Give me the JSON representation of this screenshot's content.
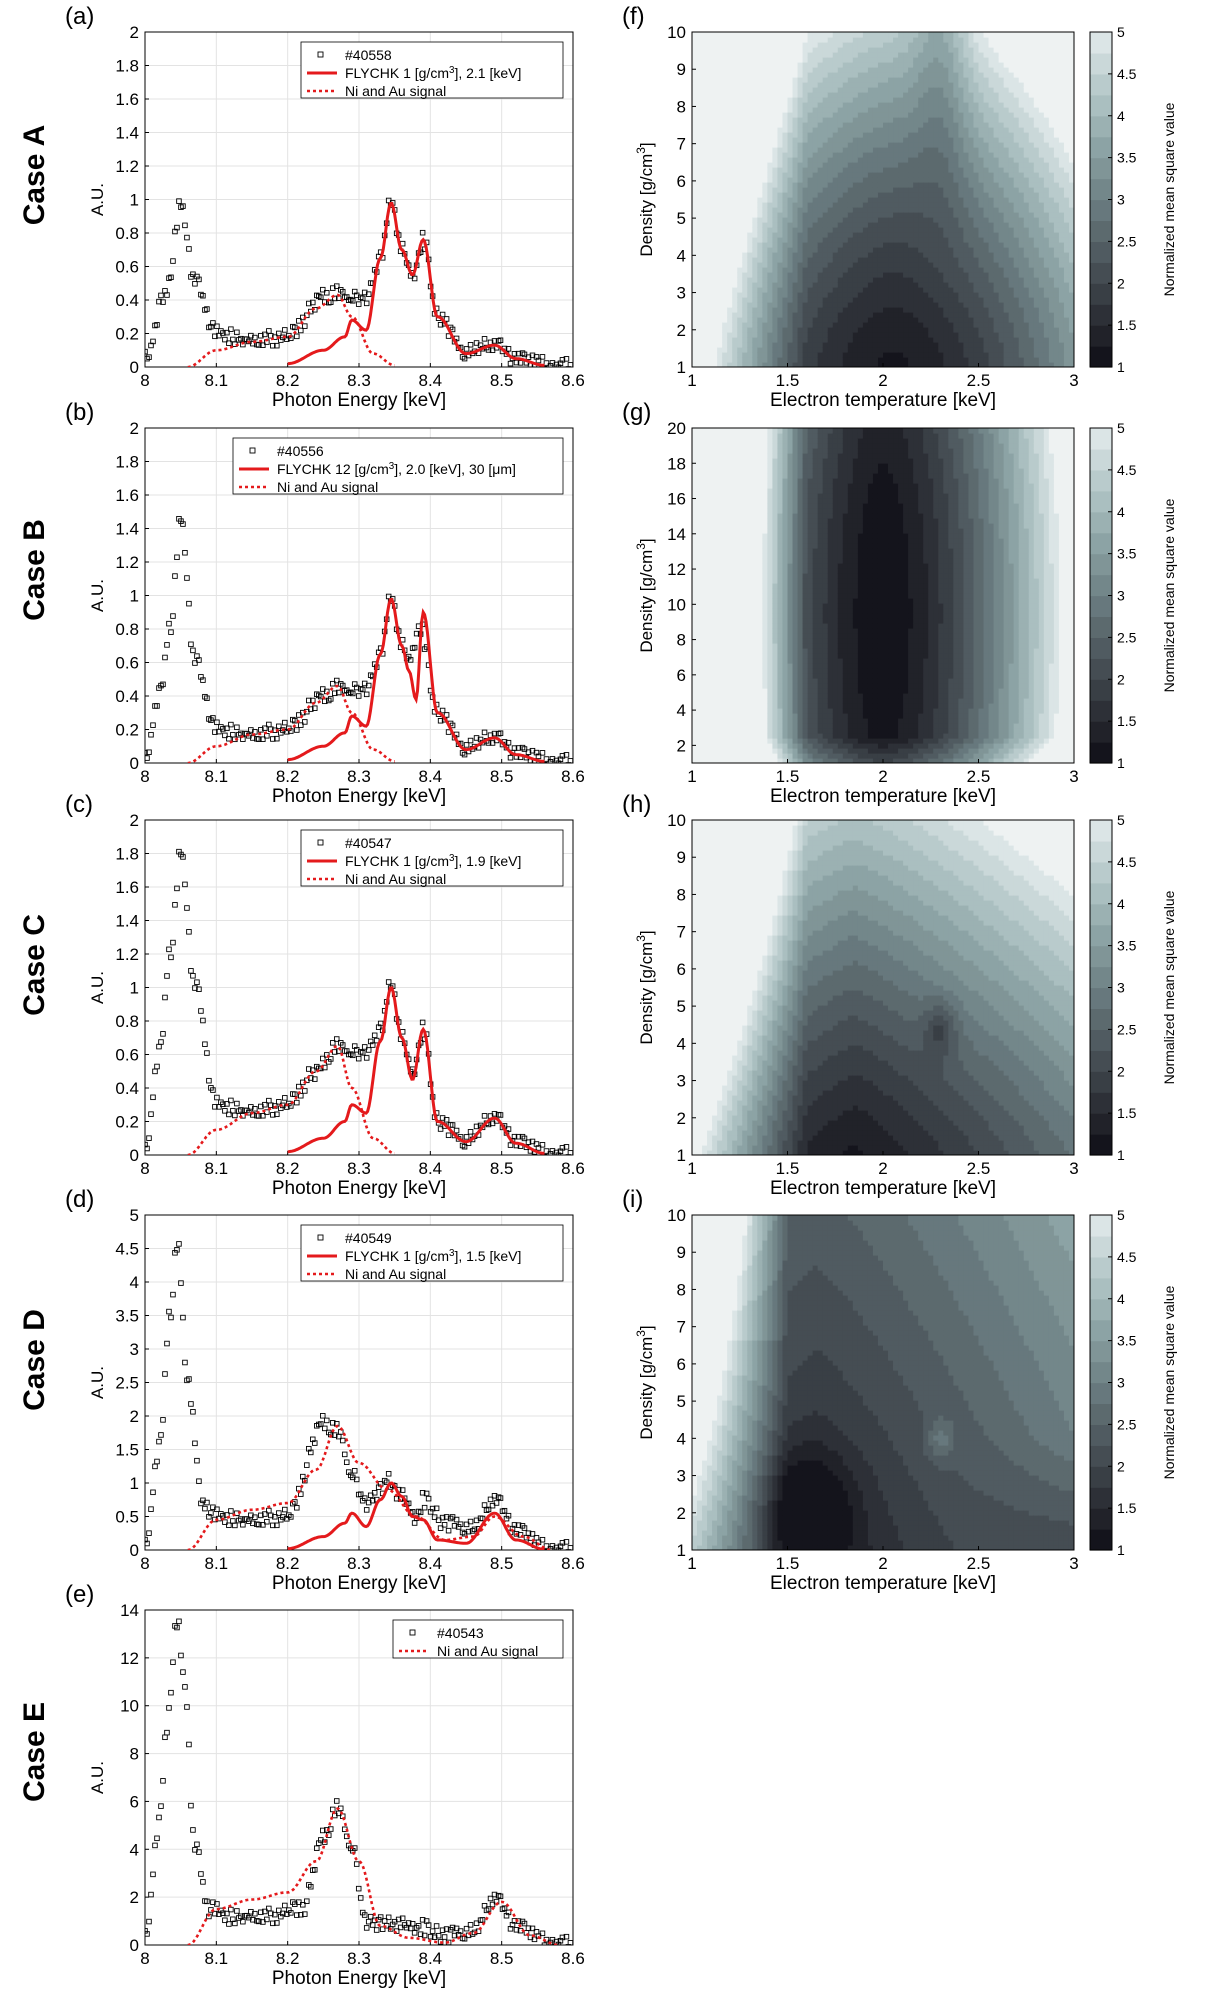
{
  "case_labels": [
    "Case A",
    "Case B",
    "Case C",
    "Case D",
    "Case E"
  ],
  "spectra_panels": [
    {
      "letter": "(a)",
      "case": "Case A",
      "shot": "#40558",
      "fit_label_parts": [
        "FLYCHK 1 [g/cm",
        "3",
        "], 2.1 [keV]"
      ],
      "ni_au_label": "Ni and Au signal",
      "ylim": [
        0,
        2
      ],
      "yticks": [
        0,
        0.2,
        0.4,
        0.6,
        0.8,
        1,
        1.2,
        1.4,
        1.6,
        1.8,
        2
      ],
      "ytick_labels": [
        "0",
        "0.2",
        "0.4",
        "0.6",
        "0.8",
        "1",
        "1.2",
        "1.4",
        "1.6",
        "1.8",
        "2"
      ]
    },
    {
      "letter": "(b)",
      "case": "Case B",
      "shot": "#40556",
      "fit_label_parts": [
        "FLYCHK 12 [g/cm",
        "3",
        "], 2.0 [keV], 30 [μm]"
      ],
      "ni_au_label": "Ni and Au signal",
      "ylim": [
        0,
        2
      ],
      "yticks": [
        0,
        0.2,
        0.4,
        0.6,
        0.8,
        1,
        1.2,
        1.4,
        1.6,
        1.8,
        2
      ],
      "ytick_labels": [
        "0",
        "0.2",
        "0.4",
        "0.6",
        "0.8",
        "1",
        "1.2",
        "1.4",
        "1.6",
        "1.8",
        "2"
      ]
    },
    {
      "letter": "(c)",
      "case": "Case C",
      "shot": "#40547",
      "fit_label_parts": [
        "FLYCHK 1 [g/cm",
        "3",
        "], 1.9 [keV]"
      ],
      "ni_au_label": "Ni and Au signal",
      "ylim": [
        0,
        2
      ],
      "yticks": [
        0,
        0.2,
        0.4,
        0.6,
        0.8,
        1,
        1.2,
        1.4,
        1.6,
        1.8,
        2
      ],
      "ytick_labels": [
        "0",
        "0.2",
        "0.4",
        "0.6",
        "0.8",
        "1",
        "1.2",
        "1.4",
        "1.6",
        "1.8",
        "2"
      ]
    },
    {
      "letter": "(d)",
      "case": "Case D",
      "shot": "#40549",
      "fit_label_parts": [
        "FLYCHK 1 [g/cm",
        "3",
        "], 1.5 [keV]"
      ],
      "ni_au_label": "Ni and Au signal",
      "ylim": [
        0,
        5
      ],
      "yticks": [
        0,
        0.5,
        1,
        1.5,
        2,
        2.5,
        3,
        3.5,
        4,
        4.5,
        5
      ],
      "ytick_labels": [
        "0",
        "0.5",
        "1",
        "1.5",
        "2",
        "2.5",
        "3",
        "3.5",
        "4",
        "4.5",
        "5"
      ]
    },
    {
      "letter": "(e)",
      "case": "Case E",
      "shot": "#40543",
      "fit_label_parts": null,
      "ni_au_label": "Ni and Au signal",
      "ylim": [
        0,
        14
      ],
      "yticks": [
        0,
        2,
        4,
        6,
        8,
        10,
        12,
        14
      ],
      "ytick_labels": [
        "0",
        "2",
        "4",
        "6",
        "8",
        "10",
        "12",
        "14"
      ]
    }
  ],
  "spectra_axes": {
    "xlabel": "Photon Energy [keV]",
    "ylabel": "A.U.",
    "xlim": [
      8,
      8.6
    ],
    "xticks": [
      8,
      8.1,
      8.2,
      8.3,
      8.4,
      8.5,
      8.6
    ],
    "xtick_labels": [
      "8",
      "8.1",
      "8.2",
      "8.3",
      "8.4",
      "8.5",
      "8.6"
    ]
  },
  "contour_panels": [
    {
      "letter": "(f)",
      "case": "Case A",
      "ylim": [
        1,
        10
      ],
      "yticks": [
        1,
        2,
        3,
        4,
        5,
        6,
        7,
        8,
        9,
        10
      ],
      "ytick_labels": [
        "1",
        "2",
        "3",
        "4",
        "5",
        "6",
        "7",
        "8",
        "9",
        "10"
      ]
    },
    {
      "letter": "(g)",
      "case": "Case B",
      "ylim": [
        1,
        20
      ],
      "yticks": [
        2,
        4,
        6,
        8,
        10,
        12,
        14,
        16,
        18,
        20
      ],
      "ytick_labels": [
        "2",
        "4",
        "6",
        "8",
        "10",
        "12",
        "14",
        "16",
        "18",
        "20"
      ]
    },
    {
      "letter": "(h)",
      "case": "Case C",
      "ylim": [
        1,
        10
      ],
      "yticks": [
        1,
        2,
        3,
        4,
        5,
        6,
        7,
        8,
        9,
        10
      ],
      "ytick_labels": [
        "1",
        "2",
        "3",
        "4",
        "5",
        "6",
        "7",
        "8",
        "9",
        "10"
      ]
    },
    {
      "letter": "(i)",
      "case": "Case D",
      "ylim": [
        1,
        10
      ],
      "yticks": [
        1,
        2,
        3,
        4,
        5,
        6,
        7,
        8,
        9,
        10
      ],
      "ytick_labels": [
        "1",
        "2",
        "3",
        "4",
        "5",
        "6",
        "7",
        "8",
        "9",
        "10"
      ]
    }
  ],
  "contour_axes": {
    "xlabel": "Electron temperature [keV]",
    "ylabel_parts": [
      "Density [g/cm",
      "3",
      "]"
    ],
    "xlim": [
      1,
      3
    ],
    "xticks": [
      1,
      1.5,
      2,
      2.5,
      3
    ],
    "xtick_labels": [
      "1",
      "1.5",
      "2",
      "2.5",
      "3"
    ],
    "colorbar_label": "Normalized mean square value",
    "colorbar_ticks": [
      1,
      1.5,
      2,
      2.5,
      3,
      3.5,
      4,
      4.5,
      5
    ],
    "colorbar_tick_labels": [
      "1",
      "1.5",
      "2",
      "2.5",
      "3",
      "3.5",
      "4",
      "4.5",
      "5"
    ],
    "colorbar_range": [
      1,
      5
    ]
  },
  "chart_data": [
    {
      "type": "scatter",
      "panel": "(a)",
      "xlim": [
        8,
        8.6
      ],
      "ylim": [
        0,
        2
      ],
      "series": [
        {
          "name": "#40558",
          "style": "black open squares",
          "x": [
            8,
            8.03,
            8.05,
            8.07,
            8.1,
            8.15,
            8.2,
            8.25,
            8.27,
            8.29,
            8.31,
            8.33,
            8.345,
            8.36,
            8.375,
            8.39,
            8.41,
            8.45,
            8.49,
            8.52,
            8.56,
            8.6
          ],
          "y": [
            0.05,
            0.45,
            0.96,
            0.5,
            0.2,
            0.16,
            0.18,
            0.42,
            0.45,
            0.4,
            0.42,
            0.65,
            1.0,
            0.7,
            0.55,
            0.76,
            0.3,
            0.08,
            0.14,
            0.05,
            0.02,
            0
          ]
        },
        {
          "name": "FLYCHK 1 [g/cm3], 2.1 [keV]",
          "style": "red solid",
          "x": [
            8.2,
            8.25,
            8.28,
            8.29,
            8.31,
            8.33,
            8.345,
            8.36,
            8.375,
            8.39,
            8.41,
            8.45,
            8.49,
            8.52,
            8.56
          ],
          "y": [
            0.02,
            0.1,
            0.18,
            0.28,
            0.22,
            0.65,
            0.98,
            0.7,
            0.55,
            0.76,
            0.3,
            0.08,
            0.13,
            0.05,
            0.01
          ]
        },
        {
          "name": "Ni and Au signal",
          "style": "red dotted",
          "x": [
            8.06,
            8.1,
            8.15,
            8.2,
            8.24,
            8.27,
            8.29,
            8.32,
            8.35
          ],
          "y": [
            0,
            0.1,
            0.15,
            0.18,
            0.35,
            0.43,
            0.3,
            0.08,
            0.01
          ]
        }
      ]
    },
    {
      "type": "scatter",
      "panel": "(b)",
      "xlim": [
        8,
        8.6
      ],
      "ylim": [
        0,
        2
      ],
      "series": [
        {
          "name": "#40556",
          "style": "black open squares",
          "x": [
            8,
            8.02,
            8.035,
            8.05,
            8.07,
            8.1,
            8.15,
            8.2,
            8.25,
            8.27,
            8.29,
            8.31,
            8.33,
            8.345,
            8.36,
            8.37,
            8.385,
            8.41,
            8.45,
            8.49,
            8.52,
            8.56,
            8.6
          ],
          "y": [
            0.02,
            0.4,
            0.8,
            1.45,
            0.6,
            0.2,
            0.17,
            0.2,
            0.4,
            0.46,
            0.42,
            0.45,
            0.65,
            1.0,
            0.7,
            0.62,
            0.82,
            0.3,
            0.08,
            0.16,
            0.06,
            0.02,
            0
          ]
        },
        {
          "name": "FLYCHK 12 [g/cm3], 2.0 [keV], 30 [μm]",
          "style": "red solid",
          "x": [
            8.2,
            8.25,
            8.28,
            8.29,
            8.31,
            8.33,
            8.345,
            8.36,
            8.37,
            8.38,
            8.39,
            8.41,
            8.45,
            8.49,
            8.52,
            8.56
          ],
          "y": [
            0.02,
            0.1,
            0.18,
            0.28,
            0.22,
            0.65,
            0.98,
            0.7,
            0.55,
            0.38,
            0.9,
            0.3,
            0.08,
            0.15,
            0.05,
            0.01
          ]
        },
        {
          "name": "Ni and Au signal",
          "style": "red dotted",
          "x": [
            8.06,
            8.1,
            8.15,
            8.2,
            8.24,
            8.27,
            8.29,
            8.32,
            8.35
          ],
          "y": [
            0,
            0.1,
            0.17,
            0.2,
            0.36,
            0.46,
            0.3,
            0.08,
            0.01
          ]
        }
      ]
    },
    {
      "type": "scatter",
      "panel": "(c)",
      "xlim": [
        8,
        8.6
      ],
      "ylim": [
        0,
        2
      ],
      "series": [
        {
          "name": "#40547",
          "style": "black open squares",
          "x": [
            8,
            8.02,
            8.035,
            8.05,
            8.07,
            8.1,
            8.15,
            8.2,
            8.24,
            8.27,
            8.29,
            8.31,
            8.33,
            8.345,
            8.36,
            8.375,
            8.39,
            8.41,
            8.45,
            8.49,
            8.52,
            8.56,
            8.6
          ],
          "y": [
            0.02,
            0.6,
            1.2,
            1.8,
            1.0,
            0.3,
            0.26,
            0.3,
            0.5,
            0.66,
            0.6,
            0.62,
            0.75,
            1.03,
            0.7,
            0.5,
            0.75,
            0.2,
            0.08,
            0.23,
            0.08,
            0.02,
            0
          ]
        },
        {
          "name": "FLYCHK 1 [g/cm3], 1.9 [keV]",
          "style": "red solid",
          "x": [
            8.2,
            8.25,
            8.28,
            8.29,
            8.31,
            8.33,
            8.345,
            8.36,
            8.375,
            8.39,
            8.41,
            8.45,
            8.49,
            8.52,
            8.56
          ],
          "y": [
            0.02,
            0.1,
            0.2,
            0.3,
            0.25,
            0.68,
            1.0,
            0.7,
            0.45,
            0.75,
            0.2,
            0.08,
            0.22,
            0.07,
            0.01
          ]
        },
        {
          "name": "Ni and Au signal",
          "style": "red dotted",
          "x": [
            8.06,
            8.1,
            8.15,
            8.2,
            8.24,
            8.27,
            8.29,
            8.32,
            8.35
          ],
          "y": [
            0,
            0.15,
            0.25,
            0.3,
            0.5,
            0.65,
            0.4,
            0.1,
            0.01
          ]
        }
      ]
    },
    {
      "type": "scatter",
      "panel": "(d)",
      "xlim": [
        8,
        8.6
      ],
      "ylim": [
        0,
        5
      ],
      "series": [
        {
          "name": "#40549",
          "style": "black open squares",
          "x": [
            8,
            8.02,
            8.035,
            8.045,
            8.06,
            8.08,
            8.1,
            8.15,
            8.2,
            8.25,
            8.27,
            8.29,
            8.31,
            8.33,
            8.34,
            8.36,
            8.38,
            8.39,
            8.42,
            8.46,
            8.49,
            8.52,
            8.56,
            8.6
          ],
          "y": [
            0.05,
            1.5,
            3.5,
            4.6,
            2.5,
            0.7,
            0.5,
            0.45,
            0.5,
            1.9,
            1.8,
            1.1,
            0.7,
            0.9,
            1.05,
            0.8,
            0.5,
            0.75,
            0.4,
            0.3,
            0.77,
            0.3,
            0.05,
            0
          ]
        },
        {
          "name": "FLYCHK 1 [g/cm3], 1.5 [keV]",
          "style": "red solid",
          "x": [
            8.2,
            8.25,
            8.28,
            8.29,
            8.31,
            8.33,
            8.345,
            8.36,
            8.375,
            8.39,
            8.41,
            8.45,
            8.49,
            8.52,
            8.56
          ],
          "y": [
            0.02,
            0.2,
            0.4,
            0.55,
            0.35,
            0.75,
            1.0,
            0.8,
            0.5,
            0.45,
            0.15,
            0.1,
            0.55,
            0.15,
            0.01
          ]
        },
        {
          "name": "Ni and Au signal",
          "style": "red dotted",
          "x": [
            8.06,
            8.1,
            8.15,
            8.2,
            8.24,
            8.27,
            8.3,
            8.34,
            8.38,
            8.42,
            8.46,
            8.49,
            8.53,
            8.57
          ],
          "y": [
            0,
            0.45,
            0.6,
            0.7,
            1.2,
            1.85,
            1.3,
            0.9,
            0.5,
            0.15,
            0.2,
            0.5,
            0.2,
            0
          ]
        }
      ]
    },
    {
      "type": "scatter",
      "panel": "(e)",
      "xlim": [
        8,
        8.6
      ],
      "ylim": [
        0,
        14
      ],
      "series": [
        {
          "name": "#40543",
          "style": "black open squares",
          "x": [
            8,
            8.02,
            8.03,
            8.045,
            8.055,
            8.07,
            8.09,
            8.12,
            8.17,
            8.22,
            8.25,
            8.27,
            8.29,
            8.31,
            8.34,
            8.38,
            8.42,
            8.46,
            8.49,
            8.52,
            8.56,
            8.6
          ],
          "y": [
            0.3,
            5,
            9,
            13.6,
            11,
            4,
            1.5,
            1.2,
            1.2,
            1.5,
            4.5,
            5.8,
            4,
            1.0,
            0.9,
            0.8,
            0.4,
            0.5,
            2.0,
            0.8,
            0.2,
            0
          ]
        },
        {
          "name": "Ni and Au signal",
          "style": "red dotted",
          "x": [
            8.06,
            8.1,
            8.15,
            8.2,
            8.24,
            8.27,
            8.3,
            8.33,
            8.37,
            8.42,
            8.46,
            8.5,
            8.54,
            8.58
          ],
          "y": [
            0,
            1.5,
            1.9,
            2.2,
            3.5,
            5.7,
            3.5,
            0.8,
            0.3,
            0.1,
            0.5,
            1.8,
            0.4,
            0
          ]
        }
      ]
    }
  ]
}
